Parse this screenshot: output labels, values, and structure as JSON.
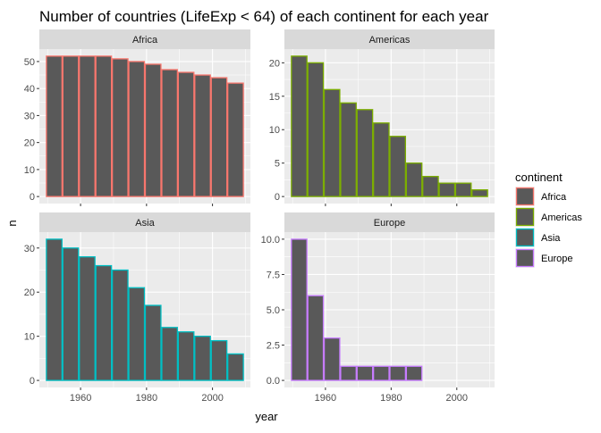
{
  "chart_data": {
    "type": "bar",
    "title": "Number of countries (LifeExp < 64) of each continent for each year",
    "xlabel": "year",
    "ylabel": "n",
    "x": [
      1952,
      1957,
      1962,
      1967,
      1972,
      1977,
      1982,
      1987,
      1992,
      1997,
      2002,
      2007
    ],
    "x_ticks": [
      1960,
      1980,
      2000
    ],
    "xlim": [
      1947.5,
      2011.5
    ],
    "grid": true,
    "legend": {
      "title": "continent",
      "position": "right",
      "items": [
        "Africa",
        "Americas",
        "Asia",
        "Europe"
      ]
    },
    "colors": {
      "bar_fill": "#595959",
      "Africa": "#F8766D",
      "Americas": "#7CAE00",
      "Asia": "#00BFC4",
      "Europe": "#C77CFF",
      "panel_bg": "#EBEBEB",
      "strip_bg": "#D9D9D9",
      "grid_major": "#FFFFFF",
      "text": "#000000",
      "tick_label": "#4D4D4D",
      "strip_text": "#1A1A1A"
    },
    "panels": [
      {
        "name": "Africa",
        "values": [
          52,
          52,
          52,
          52,
          51,
          50,
          49,
          47,
          46,
          45,
          44,
          42
        ],
        "ylim": [
          -2.6,
          54.6
        ],
        "y_ticks": [
          0,
          10,
          20,
          30,
          40,
          50
        ]
      },
      {
        "name": "Americas",
        "values": [
          21,
          20,
          16,
          14,
          13,
          11,
          9,
          5,
          3,
          2,
          2,
          1
        ],
        "ylim": [
          -1.05,
          22.05
        ],
        "y_ticks": [
          0,
          5,
          10,
          15,
          20
        ]
      },
      {
        "name": "Asia",
        "values": [
          32,
          30,
          28,
          26,
          25,
          21,
          17,
          12,
          11,
          10,
          9,
          6
        ],
        "ylim": [
          -1.6,
          33.6
        ],
        "y_ticks": [
          0,
          10,
          20,
          30
        ]
      },
      {
        "name": "Europe",
        "values": [
          10,
          6,
          3,
          1,
          1,
          1,
          1,
          1,
          0,
          0,
          0,
          0
        ],
        "ylim": [
          -0.5,
          10.5
        ],
        "y_ticks": [
          0.0,
          2.5,
          5.0,
          7.5,
          10.0
        ],
        "y_tick_labels": [
          "0.0",
          "2.5",
          "5.0",
          "7.5",
          "10.0"
        ]
      }
    ]
  }
}
